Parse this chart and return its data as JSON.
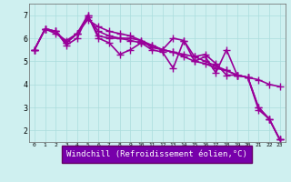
{
  "background_color": "#cff0f0",
  "grid_color": "#aadddd",
  "line_color": "#990099",
  "marker": "+",
  "markersize": 6,
  "linewidth": 1.2,
  "xlim": [
    0,
    23
  ],
  "ylim": [
    1.5,
    7.5
  ],
  "xtick_labels": [
    "0",
    "1",
    "2",
    "3",
    "4",
    "5",
    "6",
    "7",
    "8",
    "9",
    "10",
    "11",
    "12",
    "13",
    "14",
    "15",
    "16",
    "17",
    "18",
    "19",
    "20",
    "21",
    "22",
    "23"
  ],
  "ytick_labels": [
    "2",
    "3",
    "4",
    "5",
    "6",
    "7"
  ],
  "ytick_values": [
    2,
    3,
    4,
    5,
    6,
    7
  ],
  "xlabel": "Windchill (Refroidissement éolien,°C)",
  "xlabel_fontsize": 7,
  "series": [
    [
      5.5,
      6.4,
      6.3,
      5.8,
      6.2,
      7.0,
      6.1,
      6.0,
      6.0,
      6.0,
      5.9,
      5.6,
      5.5,
      6.0,
      5.9,
      5.2,
      5.3,
      4.9,
      4.4,
      4.4,
      4.3,
      2.9,
      2.5,
      1.6
    ],
    [
      5.5,
      6.4,
      6.2,
      5.9,
      6.2,
      6.8,
      6.5,
      6.3,
      6.2,
      6.1,
      5.9,
      5.7,
      5.5,
      5.4,
      5.2,
      5.0,
      4.9,
      4.7,
      4.6,
      4.4,
      4.3,
      4.2,
      4.0,
      3.9
    ],
    [
      5.5,
      6.4,
      6.3,
      5.7,
      6.0,
      7.0,
      6.0,
      5.8,
      5.3,
      5.5,
      5.8,
      5.5,
      5.4,
      4.7,
      5.9,
      5.0,
      5.2,
      4.5,
      5.5,
      4.4,
      4.3,
      3.0,
      2.5,
      1.6
    ],
    [
      5.5,
      6.4,
      6.3,
      5.8,
      6.2,
      6.9,
      6.3,
      6.1,
      6.0,
      5.9,
      5.8,
      5.7,
      5.5,
      5.4,
      5.3,
      5.2,
      5.0,
      4.8,
      4.6,
      4.4,
      4.3,
      3.0,
      2.5,
      1.6
    ]
  ]
}
